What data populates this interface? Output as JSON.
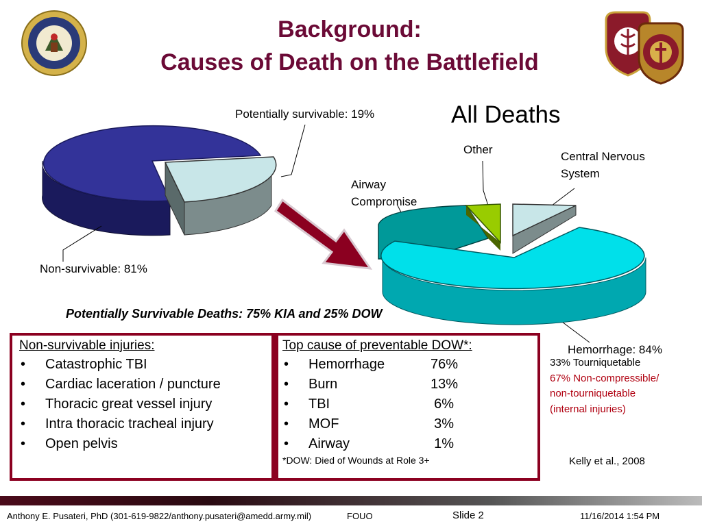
{
  "header": {
    "title_line1": "Background:",
    "title_line2": "Causes of Death on the Battlefield",
    "left_logo_icon": "department-of-the-army-seal-icon",
    "right_logo_icon": "army-medical-department-crest-icon"
  },
  "chart_data": [
    {
      "type": "pie",
      "title": "",
      "slices": [
        {
          "label": "Non-survivable: 81%",
          "value": 81,
          "color": "#333399"
        },
        {
          "label": "Potentially survivable: 19%",
          "value": 19,
          "color": "#c8e6e8"
        }
      ]
    },
    {
      "type": "pie",
      "title": "All Deaths",
      "slices": [
        {
          "label": "Hemorrhage: 84%",
          "value": 84,
          "color": "#00c8d2"
        },
        {
          "label": "Airway Compromise",
          "value": 8,
          "color": "#009999"
        },
        {
          "label": "Other",
          "value": 2,
          "color": "#99cc00"
        },
        {
          "label": "Central Nervous System",
          "value": 6,
          "color": "#c8e6e8"
        }
      ]
    }
  ],
  "labels": {
    "potentially_survivable": "Potentially survivable: 19%",
    "non_survivable": "Non-survivable: 81%",
    "all_deaths": "All Deaths",
    "other": "Other",
    "cns_line1": "Central Nervous",
    "cns_line2": "System",
    "airway_line1": "Airway",
    "airway_line2": "Compromise",
    "hemorrhage": "Hemorrhage: 84%"
  },
  "subtitle": "Potentially Survivable Deaths: 75% KIA and 25% DOW",
  "left_panel": {
    "title": "Non-survivable injuries:",
    "items": [
      "Catastrophic TBI",
      "Cardiac laceration / puncture",
      "Thoracic great vessel injury",
      "Intra thoracic tracheal injury",
      "Open pelvis"
    ]
  },
  "right_panel": {
    "title": "Top cause of preventable DOW*:",
    "items": [
      {
        "name": "Hemorrhage",
        "pct": "76%"
      },
      {
        "name": "Burn",
        "pct": "13%"
      },
      {
        "name": "TBI",
        "pct": "6%"
      },
      {
        "name": "MOF",
        "pct": "3%"
      },
      {
        "name": "Airway",
        "pct": "1%"
      }
    ],
    "footnote": "*DOW: Died of Wounds at Role 3+"
  },
  "hemorrhage_notes": {
    "line1": "33% Tourniquetable",
    "line2": "67% Non-compressible/",
    "line3": "non-tourniquetable",
    "line4": "(internal injuries)"
  },
  "citation": "Kelly et al., 2008",
  "footer": {
    "author": "Anthony E. Pusateri, PhD (301-619-9822/anthony.pusateri@amedd.army.mil)",
    "classification": "FOUO",
    "slide": "Slide 2",
    "datetime": "11/16/2014 1:54 PM"
  }
}
